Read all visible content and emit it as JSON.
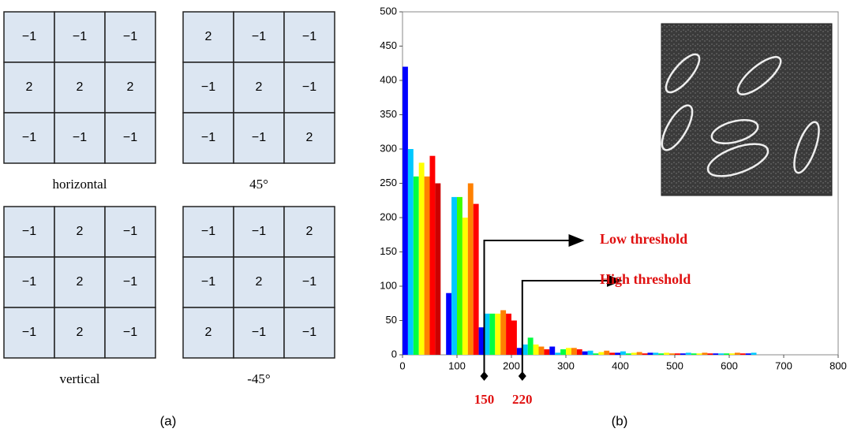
{
  "kernels": [
    {
      "label": "horizontal",
      "cells": [
        [
          "−1",
          "−1",
          "−1"
        ],
        [
          "2",
          "2",
          "2"
        ],
        [
          "−1",
          "−1",
          "−1"
        ]
      ]
    },
    {
      "label": "45°",
      "cells": [
        [
          "2",
          "−1",
          "−1"
        ],
        [
          "−1",
          "2",
          "−1"
        ],
        [
          "−1",
          "−1",
          "2"
        ]
      ]
    },
    {
      "label": "vertical",
      "cells": [
        [
          "−1",
          "2",
          "−1"
        ],
        [
          "−1",
          "2",
          "−1"
        ],
        [
          "−1",
          "2",
          "−1"
        ]
      ]
    },
    {
      "label": "-45°",
      "cells": [
        [
          "−1",
          "−1",
          "2"
        ],
        [
          "−1",
          "2",
          "−1"
        ],
        [
          "2",
          "−1",
          "−1"
        ]
      ]
    }
  ],
  "panel_labels": [
    "(a)",
    "(b)"
  ],
  "chart_data": {
    "type": "histogram",
    "bins": [
      0,
      10,
      20,
      30,
      40,
      50,
      60,
      70,
      80,
      90,
      100,
      110,
      120,
      130,
      140,
      150,
      160,
      170,
      180,
      190,
      200,
      210,
      220,
      230,
      240,
      250,
      260,
      270,
      280,
      290,
      300,
      310,
      320,
      330,
      340,
      350,
      360,
      370,
      380,
      390,
      400,
      410,
      420,
      430,
      440,
      450,
      460,
      470,
      480,
      490,
      500,
      510,
      520,
      530,
      540,
      550,
      560,
      570,
      580,
      590,
      600,
      610,
      620,
      630,
      640,
      650
    ],
    "values": [
      420,
      300,
      260,
      280,
      260,
      290,
      250,
      0,
      90,
      230,
      230,
      200,
      250,
      220,
      40,
      60,
      60,
      60,
      65,
      60,
      50,
      10,
      15,
      25,
      15,
      12,
      8,
      12,
      3,
      8,
      10,
      10,
      8,
      5,
      6,
      2,
      4,
      6,
      3,
      3,
      5,
      2,
      3,
      4,
      2,
      3,
      3,
      2,
      3,
      2,
      2,
      2,
      3,
      2,
      2,
      3,
      2,
      2,
      2,
      2,
      2,
      3,
      2,
      2,
      3
    ],
    "colors": [
      "#0000ff",
      "#00c8ff",
      "#00ff40",
      "#ffff00",
      "#ff8000",
      "#ff0000",
      "#cc0000",
      "#ff0000",
      "#0000ff",
      "#00c8ff",
      "#40ff00",
      "#ffff00",
      "#ff8000",
      "#ff0000",
      "#0000ff",
      "#00c8ff",
      "#00ff40",
      "#ffff00",
      "#ff8000",
      "#ff0000",
      "#ff0000",
      "#0000ff",
      "#00c8ff",
      "#00ff40",
      "#ffff00",
      "#ff8000",
      "#ff0000",
      "#0000ff",
      "#00c8ff",
      "#00ff40",
      "#ffff00",
      "#ff8000",
      "#ff0000",
      "#0000ff",
      "#00c8ff",
      "#00ff40",
      "#ffff00",
      "#ff8000",
      "#ff0000",
      "#0000ff",
      "#00c8ff",
      "#00ff40",
      "#ffff00",
      "#ff8000",
      "#ff0000",
      "#0000ff",
      "#00c8ff",
      "#00ff40",
      "#ffff00",
      "#ff8000",
      "#ff0000",
      "#0000ff",
      "#00c8ff",
      "#00ff40",
      "#ffff00",
      "#ff8000",
      "#ff0000",
      "#0000ff",
      "#00c8ff",
      "#00ff40",
      "#ffff00",
      "#ff8000",
      "#ff0000",
      "#0000ff",
      "#00c8ff"
    ],
    "xlim": [
      0,
      800
    ],
    "xticks": [
      0,
      100,
      200,
      300,
      400,
      500,
      600,
      700,
      800
    ],
    "ylim": [
      0,
      500
    ],
    "yticks": [
      0,
      50,
      100,
      150,
      200,
      250,
      300,
      350,
      400,
      450,
      500
    ],
    "grid": false,
    "annotations": [
      {
        "text": "Low threshold",
        "x": 150
      },
      {
        "text": "High threshold",
        "x": 220
      }
    ],
    "annotation_color": "#e01010"
  }
}
